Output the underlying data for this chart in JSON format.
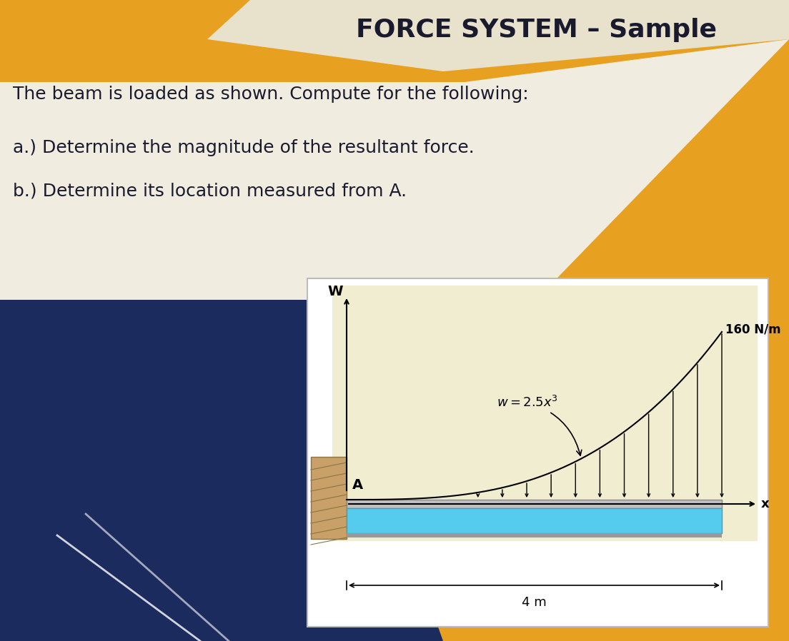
{
  "title_partial": "FORCE SYSTEM – Sample",
  "text_line1": "The beam is loaded as shown. Compute for the following:",
  "text_line2": "a.) Determine the magnitude of the resultant force.",
  "text_line3": "b.) Determine its location measured from A.",
  "bg_color_orange": "#E8A020",
  "bg_color_dark_navy": "#1C2B5E",
  "bg_color_white_panel": "#FAFAF5",
  "bg_color_diagram": "#F0EDD0",
  "beam_color_cyan": "#55CCEE",
  "beam_color_gray": "#AAAAAA",
  "wall_color": "#C8A068",
  "text_color": "#1A1A2E",
  "load_label": "w = 2.5x³",
  "load_max_label": "160 N/m",
  "dim_label": "4 m",
  "axis_w": "W",
  "axis_x": "x",
  "point_a": "A"
}
